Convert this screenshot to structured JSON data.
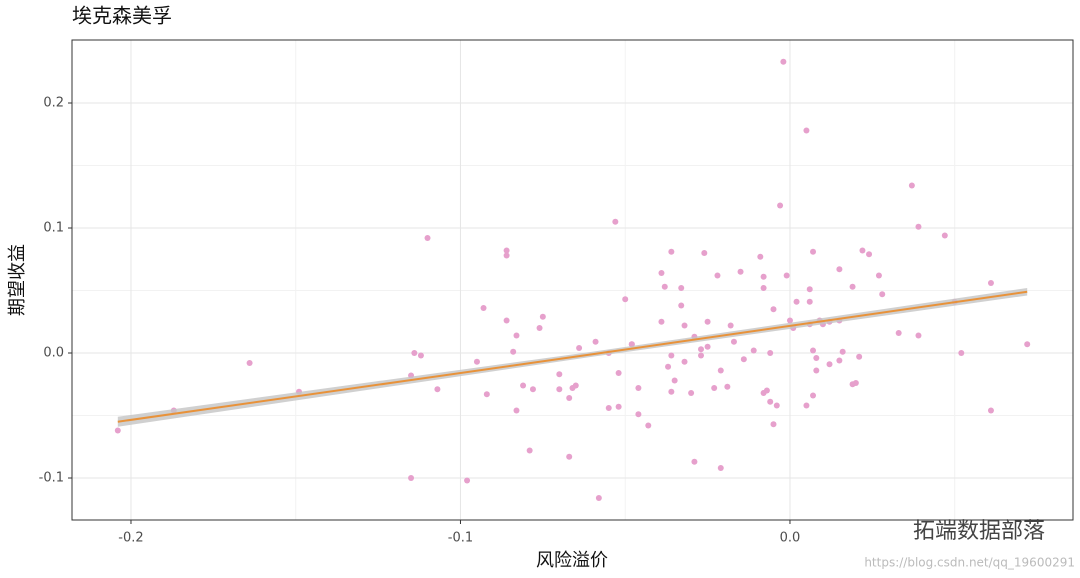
{
  "chart_data": {
    "type": "scatter",
    "title": "埃克森美孚",
    "x_label": "风险溢价",
    "y_label": "期望收益",
    "xlim": [
      -0.2179,
      0.0859
    ],
    "ylim": [
      -0.1336,
      0.2504
    ],
    "xticks": [
      -0.2,
      -0.1,
      {
        "value": 0,
        "label": "0.0"
      }
    ],
    "yticks": [
      -0.1,
      {
        "value": 0,
        "label": "0.0"
      },
      0.1,
      0.2
    ],
    "x_minor_ticks": [
      -0.15,
      -0.05,
      0.05
    ],
    "y_minor_ticks": [
      -0.05,
      0.05,
      0.15
    ],
    "grid": true,
    "color": "#e6a0cc",
    "x": [
      -0.204,
      -0.187,
      -0.164,
      -0.149,
      -0.115,
      -0.114,
      -0.112,
      -0.115,
      -0.11,
      -0.107,
      -0.098,
      -0.095,
      -0.093,
      -0.092,
      -0.086,
      -0.086,
      -0.086,
      -0.084,
      -0.083,
      -0.083,
      -0.081,
      -0.079,
      -0.078,
      -0.076,
      -0.075,
      -0.07,
      -0.07,
      -0.067,
      -0.067,
      -0.066,
      -0.065,
      -0.064,
      -0.059,
      -0.058,
      -0.055,
      -0.055,
      -0.053,
      -0.052,
      -0.052,
      -0.05,
      -0.048,
      -0.048,
      -0.046,
      -0.046,
      -0.043,
      -0.039,
      -0.039,
      -0.038,
      -0.037,
      -0.036,
      -0.036,
      -0.036,
      -0.035,
      -0.033,
      -0.033,
      -0.032,
      -0.032,
      -0.03,
      -0.029,
      -0.029,
      -0.027,
      -0.027,
      -0.026,
      -0.025,
      -0.025,
      -0.023,
      -0.022,
      -0.021,
      -0.021,
      -0.019,
      -0.018,
      -0.017,
      -0.015,
      -0.014,
      -0.011,
      -0.009,
      -0.008,
      -0.008,
      -0.008,
      -0.007,
      -0.006,
      -0.006,
      -0.005,
      -0.005,
      -0.004,
      -0.003,
      -0.002,
      -0.001,
      0,
      0.001,
      0.002,
      0.005,
      0.005,
      0.006,
      0.006,
      0.006,
      0.007,
      0.007,
      0.007,
      0.008,
      0.008,
      0.009,
      0.01,
      0.012,
      0.012,
      0.015,
      0.015,
      0.015,
      0.016,
      0.019,
      0.019,
      0.02,
      0.021,
      0.022,
      0.024,
      0.027,
      0.028,
      0.033,
      0.037,
      0.039,
      0.039,
      0.047,
      0.05,
      0.052,
      0.061,
      0.061,
      0.072
    ],
    "values": [
      -0.062,
      -0.046,
      -0.008,
      -0.031,
      -0.1,
      0,
      -0.002,
      -0.018,
      0.092,
      -0.029,
      -0.102,
      -0.007,
      0.036,
      -0.033,
      0.026,
      0.082,
      0.078,
      0.001,
      0.014,
      -0.046,
      -0.026,
      -0.078,
      -0.029,
      0.02,
      0.029,
      -0.017,
      -0.029,
      -0.036,
      -0.083,
      -0.028,
      -0.026,
      0.004,
      0.009,
      -0.116,
      0,
      -0.044,
      0.105,
      -0.043,
      -0.016,
      0.043,
      0.007,
      0.007,
      -0.028,
      -0.049,
      -0.058,
      0.025,
      0.064,
      0.053,
      -0.011,
      -0.002,
      0.081,
      -0.031,
      -0.022,
      0.052,
      0.038,
      0.022,
      -0.007,
      -0.032,
      0.013,
      -0.087,
      0.003,
      -0.002,
      0.08,
      0.025,
      0.005,
      -0.028,
      0.062,
      -0.092,
      -0.014,
      -0.027,
      0.022,
      0.009,
      0.065,
      -0.005,
      0.002,
      0.077,
      -0.032,
      0.061,
      0.052,
      -0.03,
      -0.039,
      0,
      -0.057,
      0.035,
      -0.042,
      0.118,
      0.233,
      0.062,
      0.026,
      0.02,
      0.041,
      -0.042,
      0.178,
      0.051,
      0.041,
      0.023,
      0.081,
      -0.034,
      0.002,
      -0.004,
      -0.014,
      0.026,
      0.023,
      -0.009,
      0.025,
      0.026,
      0.067,
      -0.006,
      0.001,
      0.053,
      -0.025,
      -0.024,
      -0.003,
      0.082,
      0.079,
      0.062,
      0.047,
      0.016,
      0.134,
      0.101,
      0.014,
      0.094,
      0.041,
      0,
      0.056,
      -0.046,
      0.007
    ],
    "fit": {
      "color": "#e8923a",
      "band_color": "#c4c4c4",
      "x": [
        -0.204,
        -0.06,
        0.072
      ],
      "values": [
        -0.055,
        -0.001,
        0.049
      ],
      "lower": [
        -0.059,
        -0.003,
        0.046
      ],
      "upper": [
        -0.051,
        0.001,
        0.052
      ]
    }
  },
  "watermark": {
    "brand": "拓端数据部落",
    "url": "https://blog.csdn.net/qq_19600291"
  }
}
